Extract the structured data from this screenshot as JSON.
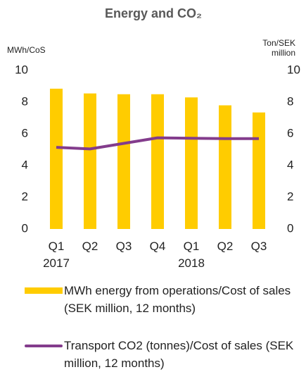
{
  "chart_data": {
    "type": "bar-line",
    "title": "Energy and CO₂",
    "ylabel": "MWh/CoS",
    "y2label": "Ton/SEK million",
    "categories": [
      "Q1 2017",
      "Q2",
      "Q3",
      "Q4",
      "Q1 2018",
      "Q2",
      "Q3"
    ],
    "series": [
      {
        "name": "MWh energy from operations/Cost of sales (SEK million, 12 months)",
        "type": "bar",
        "color": "#ffcc00",
        "values": [
          8.85,
          8.55,
          8.5,
          8.5,
          8.3,
          7.8,
          7.35
        ]
      },
      {
        "name": "Transport CO2 (tonnes)/Cost of sales (SEK million, 12 months)",
        "type": "line",
        "axis": "y2",
        "color": "#833c8c",
        "values": [
          5.15,
          5.05,
          5.4,
          5.75,
          5.72,
          5.7,
          5.7
        ]
      }
    ],
    "ylim": [
      0,
      10
    ],
    "yticks": [
      0,
      2,
      4,
      6,
      8,
      10
    ],
    "y2lim": [
      0,
      10
    ],
    "y2ticks": [
      0,
      2,
      4,
      6,
      8,
      10
    ],
    "grid": false
  }
}
